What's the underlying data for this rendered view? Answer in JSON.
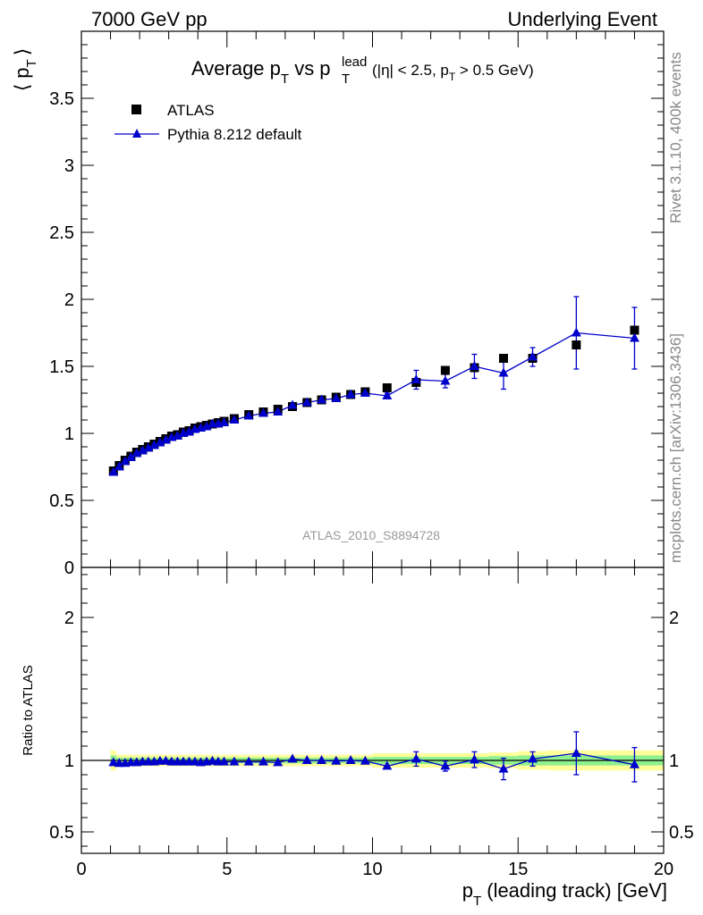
{
  "header": {
    "left": "7000 GeV pp",
    "right": "Underlying Event"
  },
  "side_labels": {
    "top": "Rivet 3.1.10,  400k events",
    "bottom": "mcplots.cern.ch [arXiv:1306.3436]"
  },
  "chart_data": [
    {
      "type": "scatter",
      "title": "Average p_T vs p_T^lead (|η| < 2.5, p_T > 0.5 GeV)",
      "title_parts": {
        "main": "Average p",
        "sub1": "T",
        "mid": " vs p",
        "sup": "lead",
        "sub2": "T",
        "cuts_a": "(|η| < 2.5, p",
        "cuts_sub": "T",
        "cuts_b": " > 0.5 GeV)"
      },
      "ylabel": "⟨ p_T ⟩",
      "ylabel_parts": {
        "open": "⟨",
        "p": "p",
        "sub": "T",
        "close": "⟩"
      },
      "watermark": "ATLAS_2010_S8894728",
      "xlim": [
        0,
        20
      ],
      "ylim": [
        0,
        4
      ],
      "y_ticks": [
        0,
        0.5,
        1,
        1.5,
        2,
        2.5,
        3,
        3.5
      ],
      "y_tick_labels": [
        "0",
        "0.5",
        "1",
        "1.5",
        "2",
        "2.5",
        "3",
        "3.5"
      ],
      "legend": [
        "ATLAS",
        "Pythia 8.212 default"
      ],
      "legend_position": "top-left",
      "colors": {
        "data": "#000000",
        "mc": "#0000cc"
      },
      "series": [
        {
          "name": "ATLAS",
          "marker": "square",
          "x": [
            1.1,
            1.3,
            1.5,
            1.7,
            1.9,
            2.1,
            2.3,
            2.5,
            2.7,
            2.9,
            3.1,
            3.3,
            3.5,
            3.7,
            3.9,
            4.1,
            4.3,
            4.5,
            4.7,
            4.9,
            5.25,
            5.75,
            6.25,
            6.75,
            7.25,
            7.75,
            8.25,
            8.75,
            9.25,
            9.75,
            10.5,
            11.5,
            12.5,
            13.5,
            14.5,
            15.5,
            17.0,
            19.0
          ],
          "y": [
            0.72,
            0.76,
            0.8,
            0.83,
            0.86,
            0.88,
            0.9,
            0.92,
            0.94,
            0.96,
            0.98,
            0.99,
            1.01,
            1.02,
            1.04,
            1.05,
            1.06,
            1.07,
            1.08,
            1.09,
            1.11,
            1.14,
            1.16,
            1.18,
            1.2,
            1.23,
            1.25,
            1.27,
            1.29,
            1.31,
            1.34,
            1.38,
            1.47,
            1.49,
            1.56,
            1.56,
            1.66,
            1.77
          ]
        },
        {
          "name": "Pythia 8.212 default",
          "marker": "triangle",
          "x": [
            1.1,
            1.3,
            1.5,
            1.7,
            1.9,
            2.1,
            2.3,
            2.5,
            2.7,
            2.9,
            3.1,
            3.3,
            3.5,
            3.7,
            3.9,
            4.1,
            4.3,
            4.5,
            4.7,
            4.9,
            5.25,
            5.75,
            6.25,
            6.75,
            7.25,
            7.75,
            8.25,
            8.75,
            9.25,
            9.75,
            10.5,
            11.5,
            12.5,
            13.5,
            14.5,
            15.5,
            17.0,
            19.0
          ],
          "y": [
            0.71,
            0.75,
            0.79,
            0.82,
            0.85,
            0.87,
            0.89,
            0.91,
            0.93,
            0.95,
            0.97,
            0.98,
            1.0,
            1.01,
            1.03,
            1.04,
            1.05,
            1.07,
            1.07,
            1.08,
            1.1,
            1.13,
            1.15,
            1.16,
            1.21,
            1.23,
            1.25,
            1.26,
            1.29,
            1.3,
            1.28,
            1.4,
            1.39,
            1.5,
            1.45,
            1.57,
            1.75,
            1.71
          ],
          "err": [
            0.01,
            0.01,
            0.01,
            0.01,
            0.01,
            0.01,
            0.01,
            0.01,
            0.01,
            0.01,
            0.01,
            0.01,
            0.01,
            0.01,
            0.01,
            0.01,
            0.01,
            0.01,
            0.01,
            0.01,
            0.01,
            0.01,
            0.01,
            0.01,
            0.01,
            0.01,
            0.01,
            0.01,
            0.02,
            0.02,
            0.02,
            0.07,
            0.05,
            0.09,
            0.12,
            0.07,
            0.27,
            0.23
          ]
        }
      ]
    },
    {
      "type": "scatter",
      "ylabel": "Ratio to ATLAS",
      "xlabel": "p_T (leading track) [GeV]",
      "xlabel_parts": {
        "p": "p",
        "sub": "T",
        "rest": " (leading track) [GeV]"
      },
      "xlim": [
        0,
        20
      ],
      "ylim": [
        0.35,
        2.35
      ],
      "x_ticks": [
        0,
        5,
        10,
        15,
        20
      ],
      "x_tick_labels": [
        "0",
        "5",
        "10",
        "15",
        "20"
      ],
      "y_ticks": [
        0.5,
        1,
        2
      ],
      "y_tick_labels": [
        "0.5",
        "1",
        "2"
      ],
      "reference_line": 1,
      "bands": {
        "inner_color": "#8ef08e",
        "outer_color": "#ffff99",
        "x_edges": [
          1.0,
          1.2,
          1.4,
          1.6,
          1.8,
          2.0,
          2.2,
          2.4,
          2.6,
          2.8,
          3.0,
          3.2,
          3.4,
          3.6,
          3.8,
          4.0,
          4.2,
          4.4,
          4.6,
          4.8,
          5.0,
          5.5,
          6.0,
          6.5,
          7.0,
          7.5,
          8.0,
          8.5,
          9.0,
          9.5,
          10.0,
          11.0,
          12.0,
          13.0,
          14.0,
          15.0,
          16.0,
          18.0,
          20.0
        ],
        "inner": [
          0.035,
          0.02,
          0.02,
          0.02,
          0.02,
          0.02,
          0.02,
          0.02,
          0.02,
          0.02,
          0.02,
          0.02,
          0.02,
          0.02,
          0.02,
          0.02,
          0.02,
          0.02,
          0.02,
          0.02,
          0.02,
          0.02,
          0.02,
          0.02,
          0.02,
          0.02,
          0.02,
          0.02,
          0.02,
          0.02,
          0.025,
          0.025,
          0.025,
          0.025,
          0.03,
          0.035,
          0.035,
          0.035
        ],
        "outer": [
          0.07,
          0.04,
          0.04,
          0.04,
          0.04,
          0.04,
          0.04,
          0.04,
          0.04,
          0.04,
          0.04,
          0.04,
          0.04,
          0.04,
          0.04,
          0.04,
          0.04,
          0.04,
          0.04,
          0.04,
          0.04,
          0.04,
          0.04,
          0.04,
          0.04,
          0.04,
          0.04,
          0.04,
          0.04,
          0.04,
          0.05,
          0.05,
          0.05,
          0.05,
          0.055,
          0.065,
          0.07,
          0.07
        ]
      },
      "series": [
        {
          "name": "Pythia 8.212 default",
          "marker": "triangle",
          "x": [
            1.1,
            1.3,
            1.5,
            1.7,
            1.9,
            2.1,
            2.3,
            2.5,
            2.7,
            2.9,
            3.1,
            3.3,
            3.5,
            3.7,
            3.9,
            4.1,
            4.3,
            4.5,
            4.7,
            4.9,
            5.25,
            5.75,
            6.25,
            6.75,
            7.25,
            7.75,
            8.25,
            8.75,
            9.25,
            9.75,
            10.5,
            11.5,
            12.5,
            13.5,
            14.5,
            15.5,
            17.0,
            19.0
          ],
          "y": [
            0.985,
            0.98,
            0.98,
            0.985,
            0.985,
            0.99,
            0.99,
            0.99,
            0.995,
            0.995,
            0.99,
            0.99,
            0.99,
            0.99,
            0.99,
            0.985,
            0.99,
            0.995,
            0.99,
            0.99,
            0.99,
            0.99,
            0.99,
            0.985,
            1.01,
            1.0,
            1.0,
            0.995,
            1.0,
            0.995,
            0.96,
            1.01,
            0.96,
            1.005,
            0.94,
            1.01,
            1.05,
            0.97
          ],
          "err": [
            0.01,
            0.01,
            0.01,
            0.01,
            0.01,
            0.01,
            0.01,
            0.01,
            0.01,
            0.01,
            0.01,
            0.01,
            0.01,
            0.01,
            0.01,
            0.01,
            0.01,
            0.01,
            0.01,
            0.01,
            0.01,
            0.01,
            0.01,
            0.01,
            0.01,
            0.01,
            0.01,
            0.01,
            0.015,
            0.02,
            0.02,
            0.05,
            0.035,
            0.055,
            0.075,
            0.05,
            0.15,
            0.12
          ]
        }
      ]
    }
  ]
}
